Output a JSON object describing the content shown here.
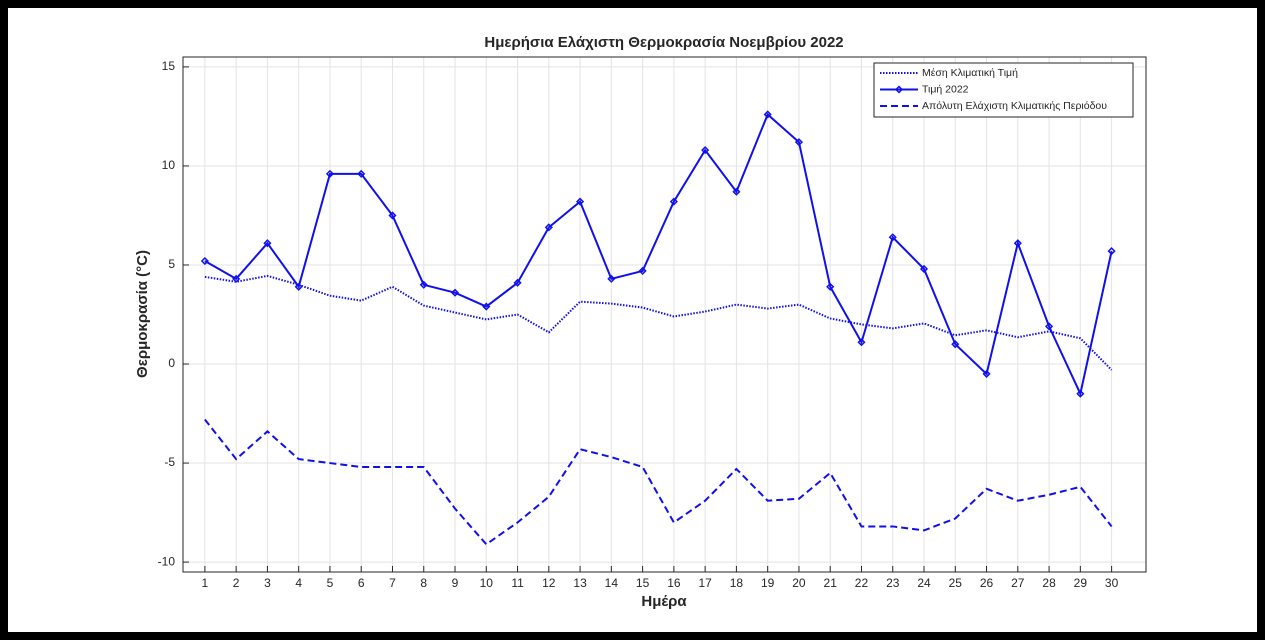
{
  "chart_data": {
    "type": "line",
    "title": "Ημερήσια Ελάχιστη Θερμοκρασία Νοεμβρίου 2022",
    "xlabel": "Ημέρα",
    "ylabel": "Θερμοκρασία (°C)",
    "x": [
      1,
      2,
      3,
      4,
      5,
      6,
      7,
      8,
      9,
      10,
      11,
      12,
      13,
      14,
      15,
      16,
      17,
      18,
      19,
      20,
      21,
      22,
      23,
      24,
      25,
      26,
      27,
      28,
      29,
      30
    ],
    "xlim": [
      0.3,
      31.1
    ],
    "xticks": [
      1,
      2,
      3,
      4,
      5,
      6,
      7,
      8,
      9,
      10,
      11,
      12,
      13,
      14,
      15,
      16,
      17,
      18,
      19,
      20,
      21,
      22,
      23,
      24,
      25,
      26,
      27,
      28,
      29,
      30
    ],
    "ylim": [
      -10.5,
      15.5
    ],
    "yticks": [
      -10,
      -5,
      0,
      5,
      10,
      15
    ],
    "grid": true,
    "legend": "top-right",
    "series": [
      {
        "name": "Μέση Κλιματική Τιμή",
        "color": "#1010ee",
        "style": "dotted",
        "values": [
          4.4,
          4.15,
          4.45,
          4.0,
          3.45,
          3.2,
          3.9,
          2.95,
          2.6,
          2.25,
          2.5,
          1.6,
          3.15,
          3.05,
          2.85,
          2.4,
          2.65,
          3.0,
          2.8,
          3.0,
          2.3,
          2.0,
          1.8,
          2.05,
          1.45,
          1.7,
          1.35,
          1.65,
          1.3,
          -0.3
        ]
      },
      {
        "name": "Τιμή 2022",
        "color": "#1010ee",
        "style": "solid",
        "marker": "diamond",
        "values": [
          5.2,
          4.3,
          6.1,
          3.9,
          9.6,
          9.6,
          7.5,
          4.0,
          3.6,
          2.9,
          4.1,
          6.9,
          8.2,
          4.3,
          4.7,
          8.2,
          10.8,
          8.7,
          12.6,
          11.2,
          3.9,
          1.1,
          6.4,
          4.8,
          1.0,
          -0.5,
          6.1,
          1.9,
          -1.5,
          5.7
        ]
      },
      {
        "name": "Απόλυτη Ελάχιστη Κλιματικής Περιόδου",
        "color": "#1010ee",
        "style": "dashed",
        "values": [
          -2.8,
          -4.8,
          -3.4,
          -4.8,
          -5.0,
          -5.2,
          -5.2,
          -5.2,
          -7.3,
          -9.1,
          -8.0,
          -6.7,
          -4.3,
          -4.7,
          -5.2,
          -8.0,
          -6.9,
          -5.3,
          -6.9,
          -6.8,
          -5.5,
          -8.2,
          -8.2,
          -8.4,
          -7.8,
          -6.3,
          -6.9,
          -6.6,
          -6.2,
          -8.2
        ]
      }
    ]
  }
}
